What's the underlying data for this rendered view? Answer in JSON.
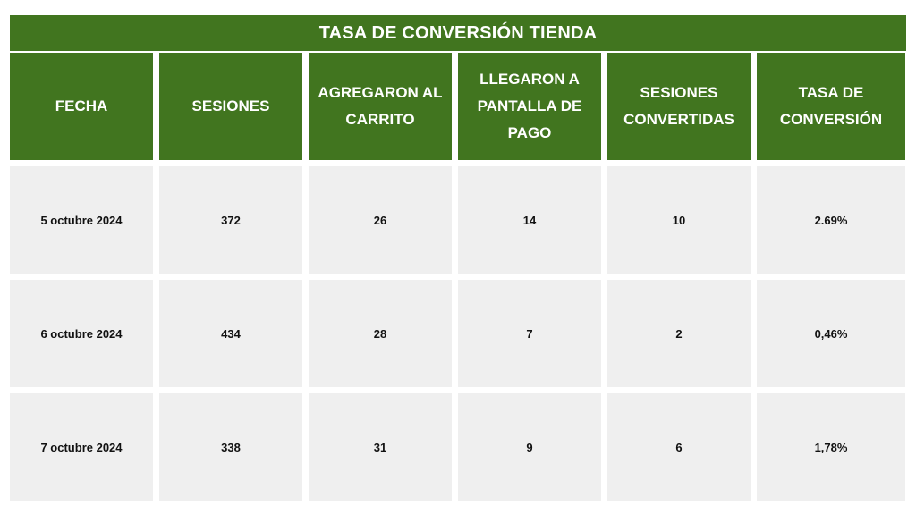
{
  "table": {
    "title": "TASA DE CONVERSIÓN TIENDA",
    "colors": {
      "header_green": "#41751f",
      "cell_grey": "#efefef"
    },
    "headers": [
      "FECHA",
      "SESIONES",
      "AGREGARON AL CARRITO",
      "LLEGARON A PANTALLA DE PAGO",
      "SESIONES CONVERTIDAS",
      "TASA DE CONVERSIÓN"
    ],
    "rows": [
      [
        "5 octubre 2024",
        "372",
        "26",
        "14",
        "10",
        "2.69%"
      ],
      [
        "6 octubre 2024",
        "434",
        "28",
        "7",
        "2",
        "0,46%"
      ],
      [
        "7 octubre 2024",
        "338",
        "31",
        "9",
        "6",
        "1,78%"
      ]
    ]
  }
}
